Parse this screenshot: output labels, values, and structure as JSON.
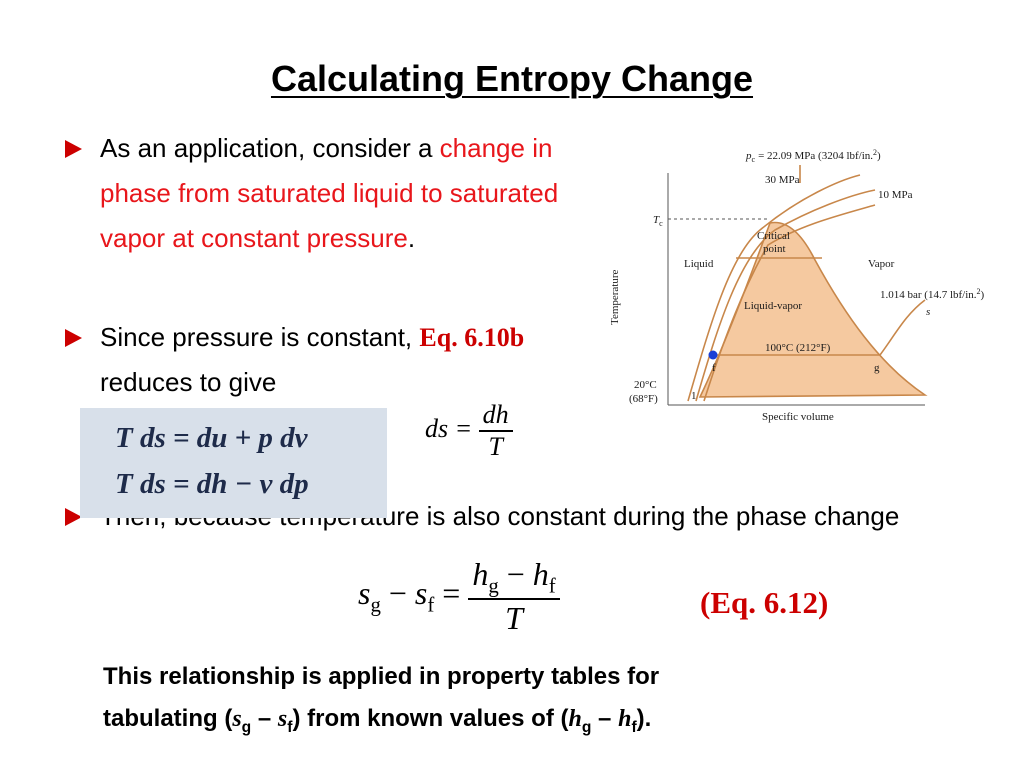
{
  "title": "Calculating Entropy Change",
  "bullets": [
    {
      "text": "As an application, consider a",
      "highlight": "change in phase from saturated liquid to saturated vapor at constant pressure",
      "end": "."
    },
    {
      "text": "Since pressure is constant,",
      "ref": "Eq. 6.10b",
      "end": "reduces to give"
    },
    {
      "text": "Then, because temperature is also constant during the phase change"
    }
  ],
  "box_equations": [
    "T ds = du + p dv",
    "T ds = dh − v dp"
  ],
  "ds_equation": {
    "lhs": "ds =",
    "numerator": "dh",
    "denominator": "T"
  },
  "entropy_equation": {
    "s1": "s",
    "sub1": "g",
    "minus": "−",
    "s2": "s",
    "sub2": "f",
    "eq": "=",
    "h1": "h",
    "hsub1": "g",
    "hminus": "−",
    "h2": "h",
    "hsub2": "f",
    "denominator": "T"
  },
  "eq_label": "(Eq. 6.12)",
  "note": {
    "line1": "This relationship is applied in property tables for",
    "start": "tabulating (",
    "s1": "s",
    "sub1": "g",
    "dash1": "–",
    "s2": "s",
    "sub2": "f",
    "middle": ") from known values of (",
    "h1": "h",
    "hsub1": "g",
    "dash2": "–",
    "h2": "h",
    "hsub2": "f",
    "end": ")."
  },
  "diagram": {
    "pc": {
      "p": "p",
      "sub": "c",
      "text": "= 22.09 MPa (3204 lbf/in.",
      "sup": "2",
      "close": ")"
    },
    "p30": "30 MPa",
    "p10": "10 MPa",
    "tc": {
      "t": "T",
      "sub": "c"
    },
    "critical": [
      "Critical",
      "point"
    ],
    "liquid": "Liquid",
    "vapor": "Vapor",
    "liquid_vapor": "Liquid-vapor",
    "atm": {
      "text": "1.014 bar (14.7 lbf/in.",
      "sup": "2",
      "close": ")"
    },
    "s": "s",
    "t100": "100°C (212°F)",
    "f": "f",
    "g": "g",
    "t20": [
      "20°C",
      "(68°F)"
    ],
    "one": "1",
    "ylabel": "Temperature",
    "xlabel": "Specific volume"
  }
}
